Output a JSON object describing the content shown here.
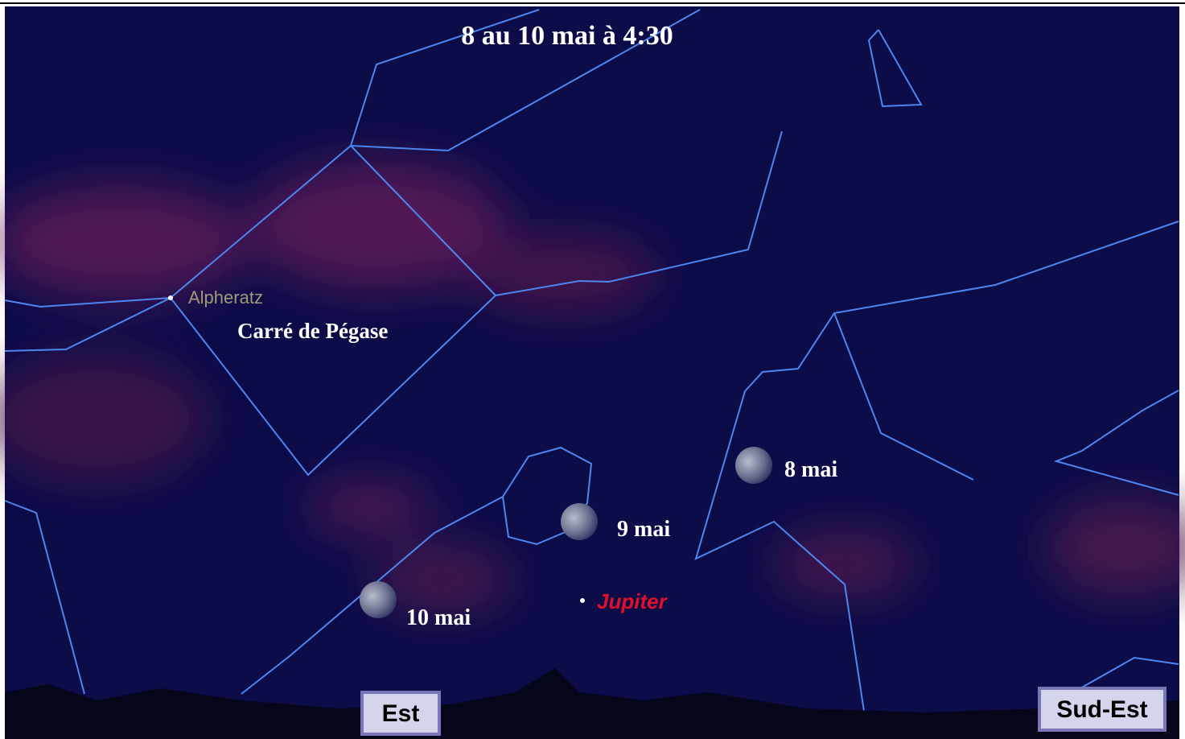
{
  "title": "8 au 10 mai à 4:30",
  "labels": {
    "star": "Alpheratz",
    "asterism": "Carré de Pégase",
    "planet": "Jupiter"
  },
  "moons": [
    {
      "label": "8 mai"
    },
    {
      "label": "9 mai"
    },
    {
      "label": "10 mai"
    }
  ],
  "directions": [
    "Est",
    "Sud-Est"
  ]
}
